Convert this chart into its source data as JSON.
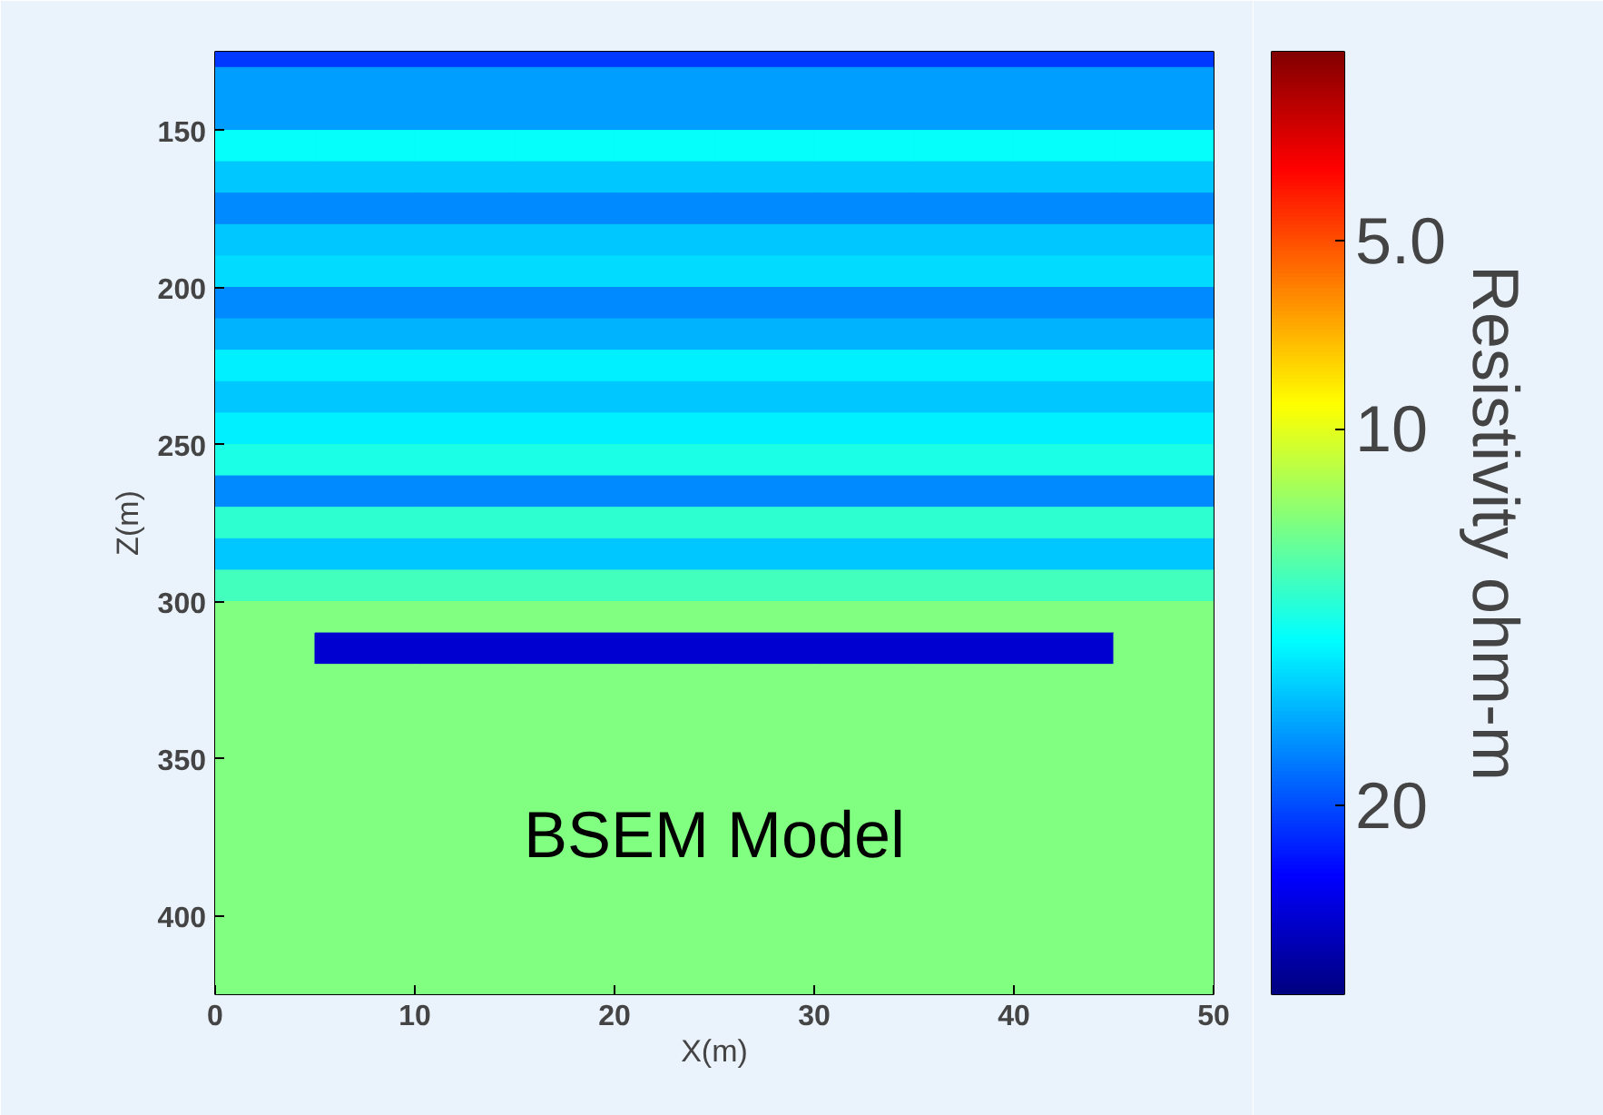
{
  "chart_data": {
    "type": "heatmap",
    "xlabel": "X(m)",
    "ylabel": "Z(m)",
    "clabel": "Resistivity ohm-m",
    "annotations": [
      "BSEM Model"
    ],
    "x": [
      2.5,
      7.5,
      12.5,
      17.5,
      22.5,
      27.5,
      32.5,
      37.5,
      42.5,
      47.5
    ],
    "y": [
      125,
      135,
      145,
      155,
      165,
      175,
      185,
      195,
      205,
      215,
      225,
      235,
      245,
      255,
      265,
      275,
      285,
      295,
      305,
      315,
      325,
      335,
      345,
      355,
      365,
      375,
      385,
      395,
      405,
      415,
      425
    ],
    "cells": [
      [
        20.5,
        20.5,
        20.5,
        20.5,
        20.5,
        20.5,
        20.5,
        20.5,
        20.5,
        20.5
      ],
      [
        18,
        18,
        18,
        18,
        18,
        18,
        18,
        18,
        18,
        18
      ],
      [
        18,
        18,
        18,
        18,
        18,
        18,
        18,
        18,
        18,
        18
      ],
      [
        15.5,
        15.5,
        15.5,
        15.5,
        15.5,
        15.5,
        15.5,
        15.5,
        15.5,
        15.5
      ],
      [
        17,
        17,
        17,
        17,
        17,
        17,
        17,
        17,
        17,
        17
      ],
      [
        18.5,
        18.5,
        18.5,
        18.5,
        18.5,
        18.5,
        18.5,
        18.5,
        18.5,
        18.5
      ],
      [
        17,
        17,
        17,
        17,
        17,
        17,
        17,
        17,
        17,
        17
      ],
      [
        16.5,
        16.5,
        16.5,
        16.5,
        16.5,
        16.5,
        16.5,
        16.5,
        16.5,
        16.5
      ],
      [
        18.5,
        18.5,
        18.5,
        18.5,
        18.5,
        18.5,
        18.5,
        18.5,
        18.5,
        18.5
      ],
      [
        17.5,
        17.5,
        17.5,
        17.5,
        17.5,
        17.5,
        17.5,
        17.5,
        17.5,
        17.5
      ],
      [
        16,
        16,
        16,
        16,
        16,
        16,
        16,
        16,
        16,
        16
      ],
      [
        17,
        17,
        17,
        17,
        17,
        17,
        17,
        17,
        17,
        17
      ],
      [
        16,
        16,
        16,
        16,
        16,
        16,
        16,
        16,
        16,
        16
      ],
      [
        15,
        15,
        15,
        15,
        15,
        15,
        15,
        15,
        15,
        15
      ],
      [
        18.5,
        18.5,
        18.5,
        18.5,
        18.5,
        18.5,
        18.5,
        18.5,
        18.5,
        18.5
      ],
      [
        14.5,
        14.5,
        14.5,
        14.5,
        14.5,
        14.5,
        14.5,
        14.5,
        14.5,
        14.5
      ],
      [
        17,
        17,
        17,
        17,
        17,
        17,
        17,
        17,
        17,
        17
      ],
      [
        14,
        14,
        14,
        14,
        14,
        14,
        14,
        14,
        14,
        14
      ],
      [
        12.5,
        12.5,
        12.5,
        12.5,
        12.5,
        12.5,
        12.5,
        12.5,
        12.5,
        12.5
      ],
      [
        12.5,
        23,
        23,
        23,
        23,
        23,
        23,
        23,
        23,
        12.5
      ],
      [
        12.5,
        12.5,
        12.5,
        12.5,
        12.5,
        12.5,
        12.5,
        12.5,
        12.5,
        12.5
      ],
      [
        12.5,
        12.5,
        12.5,
        12.5,
        12.5,
        12.5,
        12.5,
        12.5,
        12.5,
        12.5
      ],
      [
        12.5,
        12.5,
        12.5,
        12.5,
        12.5,
        12.5,
        12.5,
        12.5,
        12.5,
        12.5
      ],
      [
        12.5,
        12.5,
        12.5,
        12.5,
        12.5,
        12.5,
        12.5,
        12.5,
        12.5,
        12.5
      ],
      [
        12.5,
        12.5,
        12.5,
        12.5,
        12.5,
        12.5,
        12.5,
        12.5,
        12.5,
        12.5
      ],
      [
        12.5,
        12.5,
        12.5,
        12.5,
        12.5,
        12.5,
        12.5,
        12.5,
        12.5,
        12.5
      ],
      [
        12.5,
        12.5,
        12.5,
        12.5,
        12.5,
        12.5,
        12.5,
        12.5,
        12.5,
        12.5
      ],
      [
        12.5,
        12.5,
        12.5,
        12.5,
        12.5,
        12.5,
        12.5,
        12.5,
        12.5,
        12.5
      ],
      [
        12.5,
        12.5,
        12.5,
        12.5,
        12.5,
        12.5,
        12.5,
        12.5,
        12.5,
        12.5
      ],
      [
        12.5,
        12.5,
        12.5,
        12.5,
        12.5,
        12.5,
        12.5,
        12.5,
        12.5,
        12.5
      ],
      [
        12.5,
        12.5,
        12.5,
        12.5,
        12.5,
        12.5,
        12.5,
        12.5,
        12.5,
        12.5
      ]
    ],
    "xlim": [
      0,
      50
    ],
    "ylim": [
      425,
      125
    ],
    "xticks": [
      0,
      10,
      20,
      30,
      40,
      50
    ],
    "yticks": [
      150,
      200,
      250,
      300,
      350,
      400
    ],
    "clim": [
      0,
      25
    ],
    "cticks": [
      {
        "value": 5,
        "label": "5.0"
      },
      {
        "value": 10,
        "label": "10"
      },
      {
        "value": 20,
        "label": "20"
      }
    ]
  }
}
